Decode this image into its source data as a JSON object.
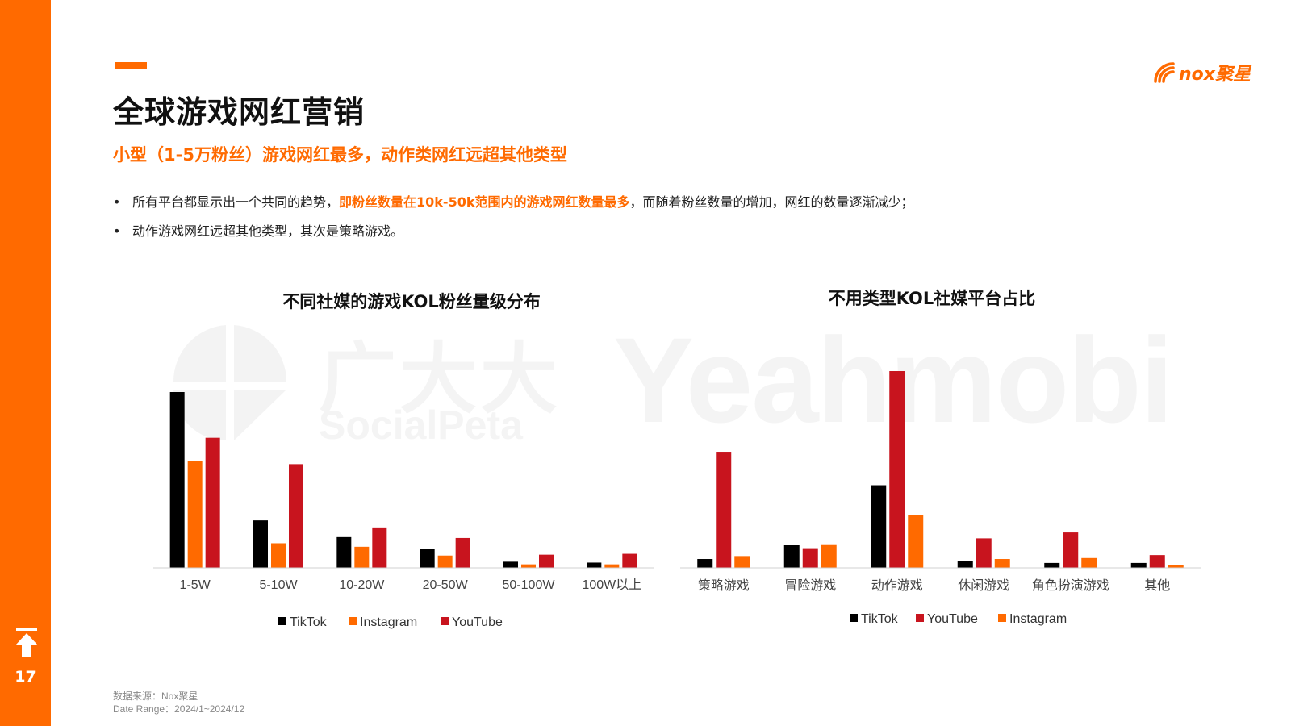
{
  "page": {
    "number": "17"
  },
  "header": {
    "title": "全球游戏网红营销",
    "subtitle": "小型（1-5万粉丝）游戏网红最多，动作类网红远超其他类型"
  },
  "logo": {
    "text": "nox聚星"
  },
  "bullets": [
    {
      "before": "所有平台都显示出一个共同的趋势，",
      "highlight": "即粉丝数量在10k-50k范围内的游戏网红数量最多",
      "after": "，而随着粉丝数量的增加，网红的数量逐渐减少；"
    },
    {
      "before": "动作游戏网红远超其他类型，其次是策略游戏。",
      "highlight": "",
      "after": ""
    }
  ],
  "watermarks": {
    "left_cn": "广大大",
    "left_en": "SocialPeta",
    "right": "Yeahmobi"
  },
  "footer": {
    "source": "数据来源：Nox聚星",
    "date_range": "Date Range：2024/1~2024/12"
  },
  "colors": {
    "accent": "#ff6a00",
    "tiktok": "#000000",
    "instagram": "#ff6a00",
    "youtube": "#c8141e"
  },
  "chart_data": [
    {
      "type": "bar",
      "title": "不同社媒的游戏KOL粉丝量级分布",
      "categories": [
        "1-5W",
        "5-10W",
        "10-20W",
        "20-50W",
        "50-100W",
        "100W以上"
      ],
      "series": [
        {
          "name": "TikTok",
          "color": "#000000",
          "values": [
            100,
            27,
            17.5,
            11,
            3.5,
            3
          ]
        },
        {
          "name": "Instagram",
          "color": "#ff6a00",
          "values": [
            61,
            14,
            12,
            7,
            2,
            2
          ]
        },
        {
          "name": "YouTube",
          "color": "#c8141e",
          "values": [
            74,
            59,
            23,
            17,
            7.5,
            8
          ]
        }
      ],
      "legend": [
        "TikTok",
        "Instagram",
        "YouTube"
      ],
      "legend_position": "bottom",
      "grid": false,
      "ylim": [
        0,
        100
      ]
    },
    {
      "type": "bar",
      "title": "不用类型KOL社媒平台占比",
      "categories": [
        "策略游戏",
        "冒险游戏",
        "动作游戏",
        "休闲游戏",
        "角色扮演游戏",
        "其他"
      ],
      "series": [
        {
          "name": "TikTok",
          "color": "#000000",
          "values": [
            4.5,
            11.5,
            42,
            3.5,
            2.5,
            2.5
          ]
        },
        {
          "name": "YouTube",
          "color": "#c8141e",
          "values": [
            59,
            10,
            100,
            15,
            18,
            6.5
          ]
        },
        {
          "name": "Instagram",
          "color": "#ff6a00",
          "values": [
            6,
            12,
            27,
            4.5,
            5,
            1.5
          ]
        }
      ],
      "legend": [
        "TikTok",
        "YouTube",
        "Instagram"
      ],
      "legend_position": "bottom",
      "grid": false,
      "ylim": [
        0,
        100
      ]
    }
  ]
}
